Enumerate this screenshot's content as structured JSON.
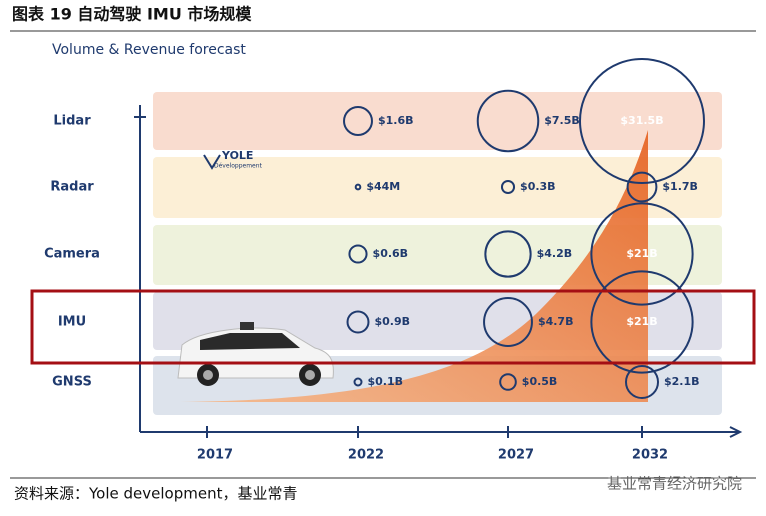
{
  "figure_title": "图表 19 自动驾驶 IMU 市场规模",
  "source": "资料来源：Yole development，基业常青",
  "watermark": "基业常青经济研究院",
  "logo": {
    "name": "YOLE",
    "sub": "Développement"
  },
  "chart_data": {
    "type": "bubble",
    "title": "Volume & Revenue forecast",
    "categories": [
      "2017",
      "2022",
      "2027",
      "2032"
    ],
    "series": [
      {
        "name": "Lidar",
        "color": "#f9dccf",
        "values": [
          null,
          1.6,
          7.5,
          31.5
        ],
        "value_labels": [
          null,
          "$1.6B",
          "$7.5B",
          "$31.5B"
        ]
      },
      {
        "name": "Radar",
        "color": "#fcefd6",
        "values": [
          null,
          0.044,
          0.3,
          1.7
        ],
        "value_labels": [
          null,
          "$44M",
          "$0.3B",
          "$1.7B"
        ]
      },
      {
        "name": "Camera",
        "color": "#eef2dc",
        "values": [
          null,
          0.6,
          4.2,
          21
        ],
        "value_labels": [
          null,
          "$0.6B",
          "$4.2B",
          "$21B"
        ]
      },
      {
        "name": "IMU",
        "color": "#e0e0ea",
        "values": [
          null,
          0.9,
          4.7,
          21
        ],
        "value_labels": [
          null,
          "$0.9B",
          "$4.7B",
          "$21B"
        ]
      },
      {
        "name": "GNSS",
        "color": "#dde3ec",
        "values": [
          null,
          0.1,
          0.5,
          2.1
        ],
        "value_labels": [
          null,
          "$0.1B",
          "$0.5B",
          "$2.1B"
        ]
      }
    ],
    "bubble_color": "#1f3a6e"
  }
}
